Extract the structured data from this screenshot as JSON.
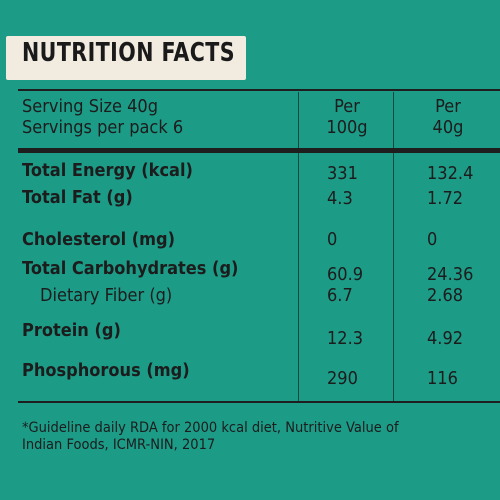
{
  "title": "NUTRITION FACTS",
  "serving": {
    "size": "Serving Size 40g",
    "per_pack": "Servings per pack 6",
    "col1_line1": "Per",
    "col1_line2": "100g",
    "col2_line1": "Per",
    "col2_line2": "40g"
  },
  "rows": [
    {
      "label": "Total Energy (kcal)",
      "per100": "331",
      "per40": "132.4"
    },
    {
      "label": "Total Fat (g)",
      "per100": "4.3",
      "per40": "1.72"
    },
    {
      "label": "Cholesterol (mg)",
      "per100": "0",
      "per40": "0"
    },
    {
      "label": "Total Carbohydrates (g)",
      "per100": "60.9",
      "per40": "24.36"
    },
    {
      "label": "Dietary Fiber (g)",
      "per100": "6.7",
      "per40": "2.68"
    },
    {
      "label": "Protein (g)",
      "per100": "12.3",
      "per40": "4.92"
    },
    {
      "label": "Phosphorous (mg)",
      "per100": "290",
      "per40": "116"
    }
  ],
  "footnote_line1": "*Guideline daily RDA for 2000 kcal diet, Nutritive Value of",
  "footnote_line2": "Indian Foods, ICMR-NIN, 2017",
  "colors": {
    "background": "#1c9b87",
    "badge": "#f1ebe0",
    "text": "#1c1c1c"
  }
}
